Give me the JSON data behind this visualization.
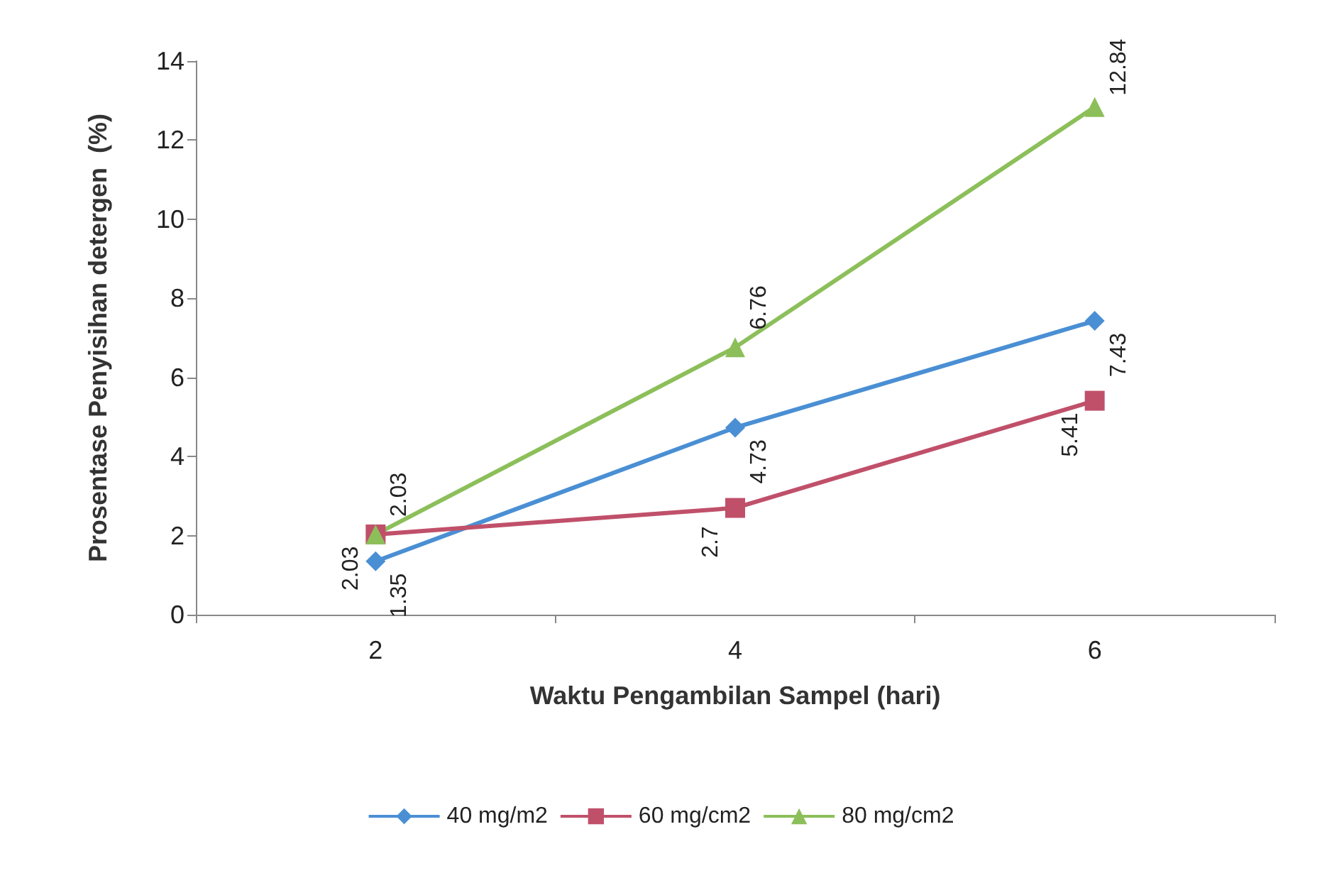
{
  "chart_data": {
    "type": "line",
    "xlabel": "Waktu Pengambilan Sampel (hari)",
    "ylabel": "Prosentase Penyisihan detergen  (%)",
    "categories": [
      "2",
      "4",
      "6"
    ],
    "series": [
      {
        "name": "40 mg/m2",
        "color": "#4a8fd4",
        "marker": "diamond",
        "values": [
          1.35,
          4.73,
          7.43
        ]
      },
      {
        "name": "60 mg/cm2",
        "color": "#c0506a",
        "marker": "square",
        "values": [
          2.03,
          2.7,
          5.41
        ]
      },
      {
        "name": "80 mg/cm2",
        "color": "#8cbf5a",
        "marker": "triangle",
        "values": [
          2.03,
          6.76,
          12.84
        ]
      }
    ],
    "ylim": [
      0,
      14
    ],
    "yticks": [
      0,
      2,
      4,
      6,
      8,
      10,
      12,
      14
    ],
    "grid": false,
    "legend": "bottom",
    "data_labels": true,
    "line_style": "solid"
  }
}
